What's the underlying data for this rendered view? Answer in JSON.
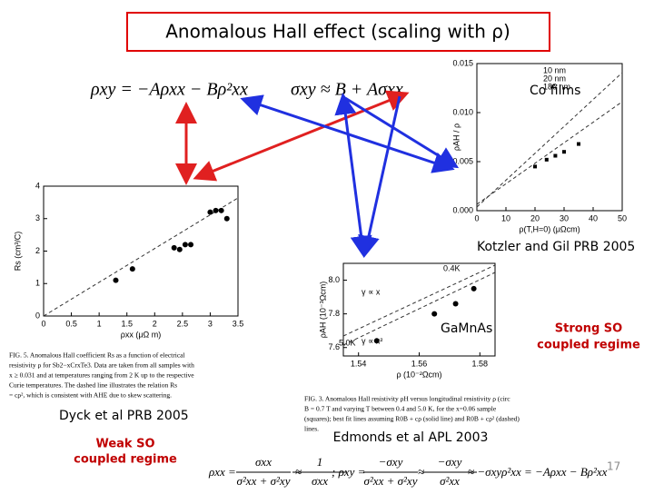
{
  "title": "Anomalous Hall effect (scaling with ρ)",
  "equations": {
    "top_left": "ρxy = −Aρxx − Bρ²xx",
    "top_right": "σxy ≈ B + Aσxx",
    "bottom": [
      "ρxx =",
      "σxx",
      "σ²xx + σ²xy",
      "≈",
      "1",
      "σxx",
      ";  ρxy =",
      "−σxy",
      "σ²xx + σ²xy",
      "≈",
      "−σxy",
      "σ²xx",
      "≈ −σxyρ²xx = −Aρxx − Bρ²xx"
    ]
  },
  "labels": {
    "co_films": "Co films",
    "kotzler": "Kotzler and Gil PRB 2005",
    "gamnas": "GaMnAs",
    "strong": [
      "Strong SO",
      "coupled regime"
    ],
    "dyck": "Dyck et al PRB 2005",
    "weak": [
      "Weak SO",
      "coupled regime"
    ],
    "edmonds": "Edmonds et al APL 2003",
    "page": "17"
  },
  "fig_kotzler": {
    "xlim": [
      0,
      50
    ],
    "ylim": [
      0,
      0.015
    ],
    "xticks": [
      0,
      10,
      20,
      30,
      40,
      50
    ],
    "yticks": [
      {
        "value": 0,
        "label": "0.000"
      },
      {
        "value": 0.005,
        "label": "0.005"
      },
      {
        "value": 0.01,
        "label": "0.010"
      },
      {
        "value": 0.015,
        "label": "0.015"
      }
    ],
    "xlabel": "ρ(T,H=0) (μΩcm)",
    "ylabel": "ρAH / ρ",
    "legend": [
      "10 nm",
      "20 nm",
      "186 nm"
    ],
    "x": [
      20,
      24,
      27,
      30,
      35
    ],
    "y": [
      0.0045,
      0.0052,
      0.0056,
      0.006,
      0.0068
    ]
  },
  "fig_dyck": {
    "xlim": [
      0,
      3.5
    ],
    "ylim": [
      0,
      4
    ],
    "xticks": [
      0,
      0.5,
      1,
      1.5,
      2,
      2.5,
      3,
      3.5
    ],
    "yticks": [
      0,
      1,
      2,
      3,
      4
    ],
    "xlabel": "ρxx (μΩ m)",
    "ylabel": "Rs (cm³/C)",
    "x": [
      1.3,
      1.6,
      2.35,
      2.45,
      2.55,
      2.65,
      3.0,
      3.1,
      3.2,
      3.3
    ],
    "y": [
      1.1,
      1.45,
      2.1,
      2.05,
      2.2,
      2.2,
      3.2,
      3.25,
      3.25,
      3.0
    ],
    "caption": [
      "FIG. 5. Anomalous Hall coefficient Rs as a function of electrical",
      "resistivity ρ for Sb2−xCrxTe3. Data are taken from all samples with",
      "x ≥ 0.031 and at temperatures ranging from 2 K up to the respective",
      "Curie temperatures. The dashed line illustrates the relation Rs",
      "= cρ², which is consistent with AHE due to skew scattering."
    ]
  },
  "fig_edmonds": {
    "xlim": [
      1.535,
      1.585
    ],
    "ylim": [
      7.55,
      8.1
    ],
    "xticks": [
      1.54,
      1.56,
      1.58
    ],
    "yticks": [
      7.6,
      7.8,
      {
        "value": 8,
        "label": "8.0"
      }
    ],
    "xlabel": "ρ (10⁻²Ωcm)",
    "ylabel": "ρAH (10⁻³Ωcm)",
    "notes": [
      "0.4K",
      "5.0K",
      "γ ∝ x",
      "γ ∝ x²"
    ],
    "x": [
      1.546,
      1.565,
      1.572,
      1.578
    ],
    "y": [
      7.64,
      7.8,
      7.86,
      7.95
    ],
    "caption": [
      "FIG. 3. Anomalous Hall resistivity ρH versus longitudinal resistivity ρ (circ",
      "B = 0.7 T and varying T between 0.4 and 5.0 K, for the x=0.06 sample",
      "(squares); best fit lines assuming R0B + cρ (solid line) and R0B + cρ² (dashed)",
      "lines."
    ]
  }
}
